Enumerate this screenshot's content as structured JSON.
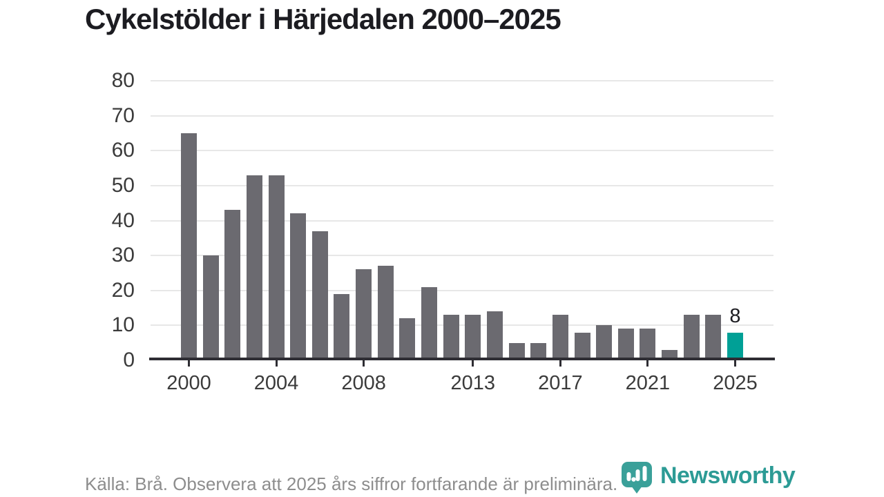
{
  "title": "Cykelstölder i Härjedalen 2000–2025",
  "footer": {
    "source_note": "Källa: Brå. Observera att 2025 års siffror fortfarande är preliminära."
  },
  "logo": {
    "name": "Newsworthy",
    "icon": "newsworthy-pin-barchart-icon"
  },
  "colors": {
    "bar": "#6b6a70",
    "highlight": "#00A096",
    "grid": "#e7e7e7",
    "axis": "#2e2d33",
    "tick_label": "#3b3b3b",
    "title_text": "#1c1c21",
    "footer_text": "#8d8d8d",
    "logo_teal": "#2c9b95",
    "logo_icon_teal": "#3aa099",
    "annotation_text": "#1c1c21"
  },
  "chart_data": {
    "type": "bar",
    "title": "Cykelstölder i Härjedalen 2000–2025",
    "categories": [
      2000,
      2001,
      2002,
      2003,
      2004,
      2005,
      2006,
      2007,
      2008,
      2009,
      2010,
      2011,
      2012,
      2013,
      2014,
      2015,
      2016,
      2017,
      2018,
      2019,
      2020,
      2021,
      2022,
      2023,
      2024,
      2025
    ],
    "values": [
      65,
      30,
      43,
      53,
      53,
      42,
      37,
      19,
      26,
      27,
      12,
      21,
      13,
      13,
      14,
      5,
      5,
      13,
      8,
      10,
      9,
      9,
      3,
      13,
      13,
      8
    ],
    "highlight_year": 2025,
    "annotation": {
      "year": 2025,
      "label": "8"
    },
    "y_ticks": [
      0,
      10,
      20,
      30,
      40,
      50,
      60,
      70,
      80
    ],
    "x_ticks": [
      2000,
      2004,
      2008,
      2013,
      2017,
      2021,
      2025
    ],
    "ylim": [
      0,
      80
    ],
    "xlabel": "",
    "ylabel": "",
    "grid": true,
    "legend": false
  }
}
